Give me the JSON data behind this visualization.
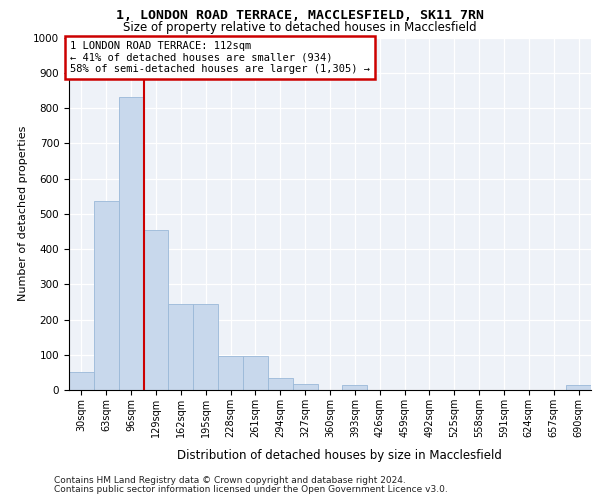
{
  "title_line1": "1, LONDON ROAD TERRACE, MACCLESFIELD, SK11 7RN",
  "title_line2": "Size of property relative to detached houses in Macclesfield",
  "xlabel": "Distribution of detached houses by size in Macclesfield",
  "ylabel": "Number of detached properties",
  "footnote1": "Contains HM Land Registry data © Crown copyright and database right 2024.",
  "footnote2": "Contains public sector information licensed under the Open Government Licence v3.0.",
  "annotation_line1": "1 LONDON ROAD TERRACE: 112sqm",
  "annotation_line2": "← 41% of detached houses are smaller (934)",
  "annotation_line3": "58% of semi-detached houses are larger (1,305) →",
  "bar_labels": [
    "30sqm",
    "63sqm",
    "96sqm",
    "129sqm",
    "162sqm",
    "195sqm",
    "228sqm",
    "261sqm",
    "294sqm",
    "327sqm",
    "360sqm",
    "393sqm",
    "426sqm",
    "459sqm",
    "492sqm",
    "525sqm",
    "558sqm",
    "591sqm",
    "624sqm",
    "657sqm",
    "690sqm"
  ],
  "bar_values": [
    52,
    535,
    830,
    455,
    245,
    245,
    97,
    97,
    35,
    18,
    0,
    13,
    0,
    0,
    0,
    0,
    0,
    0,
    0,
    0,
    13
  ],
  "bar_color": "#c8d8ec",
  "bar_edge_color": "#9ab8d8",
  "vline_x": 2.5,
  "vline_color": "#cc0000",
  "annotation_box_edgecolor": "#cc0000",
  "bg_color": "#eef2f8",
  "ylim_max": 1000,
  "ytick_step": 100,
  "title1_fontsize": 9.5,
  "title2_fontsize": 8.5,
  "ylabel_fontsize": 8.0,
  "xlabel_fontsize": 8.5,
  "tick_fontsize": 7.5,
  "ann_fontsize": 7.5,
  "footnote_fontsize": 6.5
}
